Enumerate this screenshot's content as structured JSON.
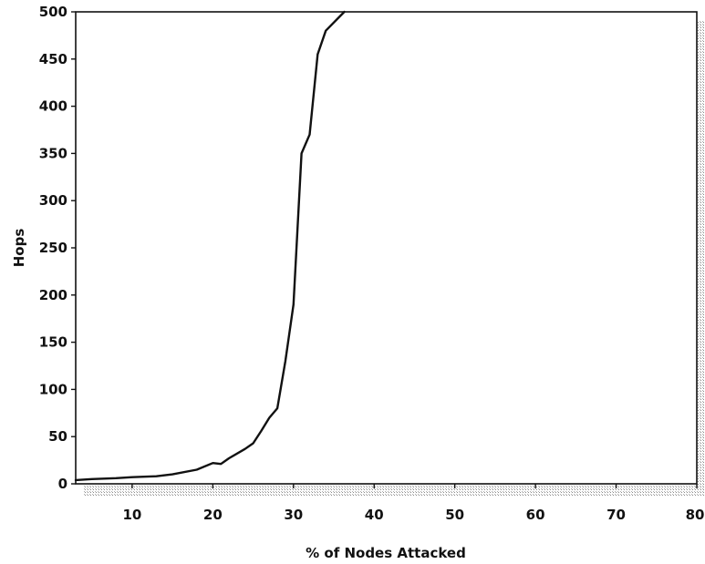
{
  "chart_data": {
    "type": "line",
    "title": "",
    "xlabel": "% of Nodes Attacked",
    "ylabel": "Hops",
    "xlim": [
      3,
      80
    ],
    "ylim": [
      0,
      500
    ],
    "xticks": [
      10,
      20,
      30,
      40,
      50,
      60,
      70,
      80
    ],
    "yticks": [
      0,
      50,
      100,
      150,
      200,
      250,
      300,
      350,
      400,
      450,
      500
    ],
    "grid": false,
    "legend": "none",
    "series": [
      {
        "color": "#111111",
        "x": [
          3,
          5,
          8,
          10,
          13,
          15,
          18,
          20,
          21,
          22,
          24,
          25,
          26,
          27,
          28,
          29,
          30,
          31,
          32,
          33,
          34,
          36.3
        ],
        "y": [
          4,
          5,
          6,
          7,
          8,
          10,
          15,
          22,
          21,
          27,
          37,
          43,
          56,
          70,
          80,
          130,
          190,
          350,
          370,
          455,
          480,
          500
        ]
      }
    ]
  }
}
